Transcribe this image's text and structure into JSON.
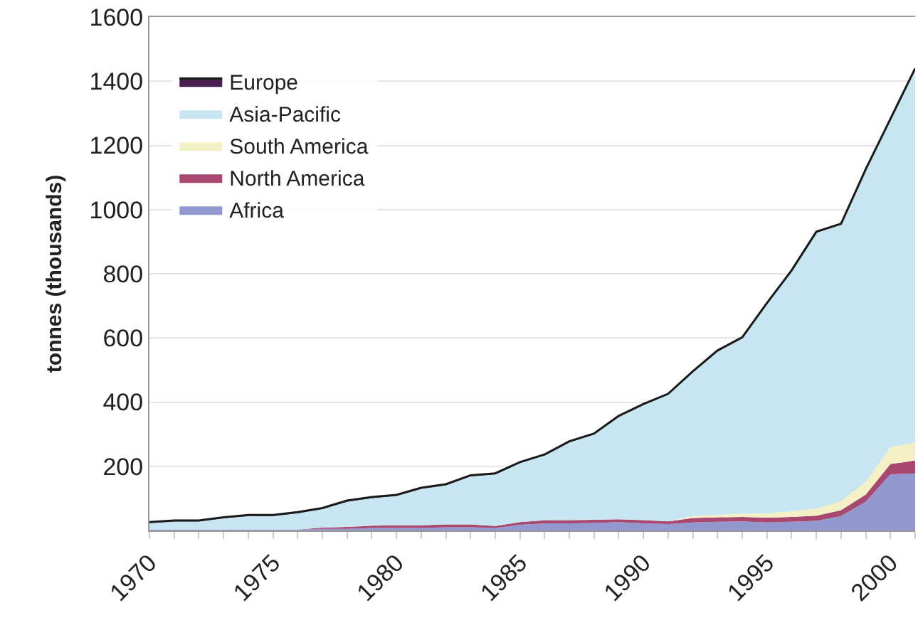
{
  "chart_data": {
    "type": "area",
    "stacked": true,
    "ylabel": "tonnes (thousands)",
    "x": [
      1970,
      1971,
      1972,
      1973,
      1974,
      1975,
      1976,
      1977,
      1978,
      1979,
      1980,
      1981,
      1982,
      1983,
      1984,
      1985,
      1986,
      1987,
      1988,
      1989,
      1990,
      1991,
      1992,
      1993,
      1994,
      1995,
      1996,
      1997,
      1998,
      1999,
      2000,
      2001
    ],
    "series": [
      {
        "name": "Africa",
        "color": "#9399cf",
        "values": [
          3,
          3,
          3,
          3,
          3,
          3,
          3,
          5,
          5,
          8,
          8,
          8,
          10,
          10,
          8,
          18,
          22,
          22,
          23,
          26,
          22,
          20,
          25,
          27,
          28,
          25,
          27,
          30,
          45,
          90,
          175,
          178
        ]
      },
      {
        "name": "North America",
        "color": "#a8476f",
        "values": [
          0,
          0,
          0,
          0,
          0,
          0,
          0,
          4,
          6,
          7,
          8,
          8,
          9,
          9,
          6,
          8,
          10,
          10,
          10,
          9,
          10,
          8,
          14,
          14,
          14,
          15,
          15,
          16,
          18,
          22,
          32,
          40
        ]
      },
      {
        "name": "South America",
        "color": "#f3f0c6",
        "values": [
          0,
          0,
          0,
          0,
          0,
          0,
          0,
          0,
          0,
          0,
          0,
          0,
          0,
          0,
          0,
          0,
          0,
          0,
          0,
          0,
          0,
          0,
          6,
          8,
          10,
          14,
          18,
          22,
          28,
          40,
          52,
          56
        ]
      },
      {
        "name": "Asia-Pacific",
        "color": "#c8e6f2",
        "values": [
          20,
          25,
          25,
          35,
          42,
          42,
          51,
          58,
          79,
          86,
          92,
          114,
          122,
          150,
          161,
          184,
          202,
          243,
          266,
          319,
          359,
          395,
          448,
          509,
          547,
          652,
          748,
          860,
          862,
          971,
          1021,
          1163
        ]
      },
      {
        "name": "Europe",
        "color": "#4a1f52",
        "values": [
          3,
          3,
          3,
          3,
          3,
          3,
          3,
          3,
          3,
          3,
          3,
          3,
          3,
          3,
          3,
          3,
          3,
          3,
          3,
          3,
          3,
          3,
          3,
          3,
          3,
          3,
          3,
          3,
          3,
          3,
          3,
          3
        ]
      }
    ],
    "xlim": [
      1970,
      2001
    ],
    "xticks": [
      1970,
      {
        "value": 1971,
        "label": null
      },
      {
        "value": 1972,
        "label": null
      },
      {
        "value": 1973,
        "label": null
      },
      {
        "value": 1974,
        "label": null
      },
      1975,
      {
        "value": 1976,
        "label": null
      },
      {
        "value": 1977,
        "label": null
      },
      {
        "value": 1978,
        "label": null
      },
      {
        "value": 1979,
        "label": null
      },
      1980,
      {
        "value": 1981,
        "label": null
      },
      {
        "value": 1982,
        "label": null
      },
      {
        "value": 1983,
        "label": null
      },
      {
        "value": 1984,
        "label": null
      },
      1985,
      {
        "value": 1986,
        "label": null
      },
      {
        "value": 1987,
        "label": null
      },
      {
        "value": 1988,
        "label": null
      },
      {
        "value": 1989,
        "label": null
      },
      1990,
      {
        "value": 1991,
        "label": null
      },
      {
        "value": 1992,
        "label": null
      },
      {
        "value": 1993,
        "label": null
      },
      {
        "value": 1994,
        "label": null
      },
      1995,
      {
        "value": 1996,
        "label": null
      },
      {
        "value": 1997,
        "label": null
      },
      {
        "value": 1998,
        "label": null
      },
      {
        "value": 1999,
        "label": null
      },
      2000,
      {
        "value": 2001,
        "label": null
      }
    ],
    "ylim": [
      0,
      1600
    ],
    "yticks": [
      200,
      400,
      600,
      800,
      1000,
      1200,
      1400,
      1600
    ],
    "grid": "y",
    "legend": "top left"
  }
}
